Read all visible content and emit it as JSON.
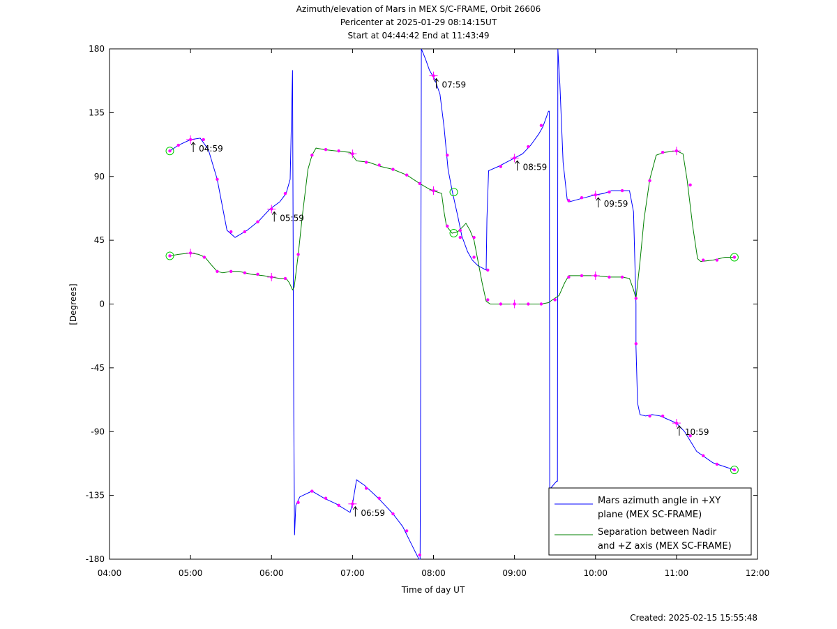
{
  "chart_data": {
    "type": "line",
    "title_lines": [
      "Azimuth/elevation of Mars in MEX S/C-FRAME,  Orbit 26606",
      "Pericenter at 2025-01-29 08:14:15UT",
      "Start at 04:44:42 End at 11:43:49"
    ],
    "xlabel": "Time of day UT",
    "ylabel": "[Degrees]",
    "xlim": [
      4.0,
      12.0
    ],
    "ylim": [
      -180,
      180
    ],
    "xticks": [
      4,
      5,
      6,
      7,
      8,
      9,
      10,
      11,
      12
    ],
    "xtick_labels": [
      "04:00",
      "05:00",
      "06:00",
      "07:00",
      "08:00",
      "09:00",
      "10:00",
      "11:00",
      "12:00"
    ],
    "yticks": [
      180,
      135,
      90,
      45,
      0,
      -45,
      -90,
      -135,
      -180
    ],
    "ytick_labels": [
      "180",
      "135",
      "90",
      "45",
      "0",
      "-45",
      "-90",
      "-135",
      "-180"
    ],
    "grid": false,
    "legend_position": "bottom-right",
    "series": [
      {
        "name_lines": [
          "Mars azimuth angle in +XY",
          "plane (MEX SC-FRAME)"
        ],
        "color": "#0000ff",
        "points": [
          [
            4.745,
            108
          ],
          [
            4.85,
            112
          ],
          [
            5.0,
            116
          ],
          [
            5.12,
            117
          ],
          [
            5.22,
            109
          ],
          [
            5.33,
            88
          ],
          [
            5.45,
            52
          ],
          [
            5.55,
            47
          ],
          [
            5.7,
            52
          ],
          [
            5.85,
            59
          ],
          [
            5.98,
            67
          ],
          [
            6.1,
            72
          ],
          [
            6.18,
            78
          ],
          [
            6.23,
            88
          ],
          [
            6.26,
            165
          ],
          [
            6.275,
            -80
          ],
          [
            6.285,
            -163
          ],
          [
            6.3,
            -142
          ],
          [
            6.35,
            -136
          ],
          [
            6.5,
            -132
          ],
          [
            6.65,
            -137
          ],
          [
            6.8,
            -141
          ],
          [
            6.97,
            -147
          ],
          [
            7.0,
            -141
          ],
          [
            7.05,
            -124
          ],
          [
            7.15,
            -128
          ],
          [
            7.32,
            -137
          ],
          [
            7.5,
            -148
          ],
          [
            7.62,
            -157
          ],
          [
            7.75,
            -172
          ],
          [
            7.82,
            -180
          ],
          [
            7.835,
            -180
          ],
          [
            7.84,
            -100
          ],
          [
            7.85,
            180
          ],
          [
            7.9,
            173
          ],
          [
            7.95,
            165
          ],
          [
            8.02,
            158
          ],
          [
            8.08,
            148
          ],
          [
            8.13,
            125
          ],
          [
            8.18,
            95
          ],
          [
            8.23,
            80
          ],
          [
            8.3,
            62
          ],
          [
            8.35,
            48
          ],
          [
            8.42,
            37
          ],
          [
            8.48,
            31
          ],
          [
            8.55,
            27
          ],
          [
            8.65,
            24
          ],
          [
            8.66,
            60
          ],
          [
            8.68,
            94
          ],
          [
            8.8,
            97
          ],
          [
            8.9,
            100
          ],
          [
            9.0,
            103
          ],
          [
            9.1,
            106
          ],
          [
            9.2,
            112
          ],
          [
            9.3,
            120
          ],
          [
            9.35,
            125
          ],
          [
            9.42,
            136
          ],
          [
            9.43,
            136
          ],
          [
            9.435,
            -130
          ],
          [
            9.445,
            -130
          ],
          [
            9.52,
            -125
          ],
          [
            9.53,
            -125
          ],
          [
            9.535,
            180
          ],
          [
            9.56,
            155
          ],
          [
            9.6,
            100
          ],
          [
            9.65,
            74
          ],
          [
            9.67,
            72
          ],
          [
            9.8,
            74
          ],
          [
            9.93,
            76
          ],
          [
            10.0,
            77
          ],
          [
            10.1,
            78
          ],
          [
            10.2,
            80
          ],
          [
            10.3,
            80
          ],
          [
            10.42,
            80
          ],
          [
            10.47,
            65
          ],
          [
            10.5,
            0
          ],
          [
            10.5,
            -30
          ],
          [
            10.52,
            -70
          ],
          [
            10.55,
            -78
          ],
          [
            10.62,
            -79
          ],
          [
            10.7,
            -78
          ],
          [
            10.8,
            -79
          ],
          [
            10.88,
            -81
          ],
          [
            11.0,
            -84
          ],
          [
            11.1,
            -90
          ],
          [
            11.25,
            -104
          ],
          [
            11.45,
            -112
          ],
          [
            11.715,
            -117
          ]
        ],
        "markers": [
          [
            4.745,
            108
          ],
          [
            4.85,
            112
          ],
          [
            5.0,
            116
          ],
          [
            5.16,
            116
          ],
          [
            5.33,
            88
          ],
          [
            5.5,
            51
          ],
          [
            5.67,
            51
          ],
          [
            5.83,
            58
          ],
          [
            6.0,
            67
          ],
          [
            6.17,
            78
          ],
          [
            6.33,
            -140
          ],
          [
            6.5,
            -132
          ],
          [
            6.67,
            -137
          ],
          [
            6.83,
            -142
          ],
          [
            7.0,
            -141
          ],
          [
            7.17,
            -130
          ],
          [
            7.33,
            -137
          ],
          [
            7.5,
            -148
          ],
          [
            7.67,
            -160
          ],
          [
            7.83,
            -177
          ],
          [
            8.0,
            161
          ],
          [
            8.17,
            105
          ],
          [
            8.33,
            47
          ],
          [
            8.5,
            33
          ],
          [
            8.67,
            24
          ],
          [
            8.83,
            97
          ],
          [
            9.0,
            103
          ],
          [
            9.17,
            111
          ],
          [
            9.33,
            126
          ],
          [
            9.67,
            73
          ],
          [
            9.83,
            75
          ],
          [
            10.0,
            77
          ],
          [
            10.17,
            79
          ],
          [
            10.33,
            80
          ],
          [
            10.5,
            -28
          ],
          [
            10.67,
            -79
          ],
          [
            10.83,
            -79
          ],
          [
            11.0,
            -84
          ],
          [
            11.17,
            -93
          ],
          [
            11.33,
            -107
          ],
          [
            11.5,
            -113
          ],
          [
            11.715,
            -117
          ]
        ],
        "time_labels": [
          {
            "t": 5.0,
            "v": 116,
            "label": "04:59"
          },
          {
            "t": 6.0,
            "v": 67,
            "label": "05:59"
          },
          {
            "t": 7.0,
            "v": -141,
            "label": "06:59"
          },
          {
            "t": 8.0,
            "v": 161,
            "label": "07:59"
          },
          {
            "t": 9.0,
            "v": 103,
            "label": "08:59"
          },
          {
            "t": 10.0,
            "v": 77,
            "label": "09:59"
          },
          {
            "t": 11.0,
            "v": -84,
            "label": "10:59"
          }
        ]
      },
      {
        "name_lines": [
          "Separation between Nadir",
          "and +Z axis (MEX SC-FRAME)"
        ],
        "color": "#008000",
        "points": [
          [
            4.745,
            34
          ],
          [
            4.85,
            35
          ],
          [
            5.0,
            36
          ],
          [
            5.1,
            35
          ],
          [
            5.18,
            33
          ],
          [
            5.25,
            28
          ],
          [
            5.33,
            23
          ],
          [
            5.4,
            22
          ],
          [
            5.5,
            23
          ],
          [
            5.6,
            23
          ],
          [
            5.75,
            21
          ],
          [
            5.9,
            20
          ],
          [
            6.0,
            19
          ],
          [
            6.1,
            18
          ],
          [
            6.18,
            18
          ],
          [
            6.22,
            15
          ],
          [
            6.26,
            10
          ],
          [
            6.28,
            12
          ],
          [
            6.33,
            35
          ],
          [
            6.38,
            62
          ],
          [
            6.45,
            95
          ],
          [
            6.5,
            105
          ],
          [
            6.55,
            110
          ],
          [
            6.65,
            109
          ],
          [
            6.8,
            108
          ],
          [
            6.97,
            107
          ],
          [
            7.05,
            101
          ],
          [
            7.2,
            100
          ],
          [
            7.35,
            97
          ],
          [
            7.5,
            95
          ],
          [
            7.67,
            91
          ],
          [
            7.83,
            85
          ],
          [
            7.95,
            81
          ],
          [
            8.0,
            80
          ],
          [
            8.1,
            78
          ],
          [
            8.13,
            65
          ],
          [
            8.16,
            55
          ],
          [
            8.23,
            50
          ],
          [
            8.3,
            51
          ],
          [
            8.37,
            55
          ],
          [
            8.4,
            57
          ],
          [
            8.45,
            52
          ],
          [
            8.5,
            45
          ],
          [
            8.55,
            30
          ],
          [
            8.6,
            15
          ],
          [
            8.65,
            2
          ],
          [
            8.7,
            0
          ],
          [
            8.83,
            0
          ],
          [
            9.0,
            0
          ],
          [
            9.17,
            0
          ],
          [
            9.33,
            0
          ],
          [
            9.42,
            1
          ],
          [
            9.47,
            3
          ],
          [
            9.55,
            6
          ],
          [
            9.62,
            15
          ],
          [
            9.67,
            20
          ],
          [
            9.75,
            20
          ],
          [
            9.83,
            20
          ],
          [
            10.0,
            20
          ],
          [
            10.17,
            19
          ],
          [
            10.33,
            19
          ],
          [
            10.42,
            18
          ],
          [
            10.47,
            10
          ],
          [
            10.5,
            4
          ],
          [
            10.55,
            30
          ],
          [
            10.6,
            60
          ],
          [
            10.67,
            88
          ],
          [
            10.75,
            105
          ],
          [
            10.85,
            107
          ],
          [
            11.0,
            108
          ],
          [
            11.08,
            106
          ],
          [
            11.13,
            88
          ],
          [
            11.2,
            55
          ],
          [
            11.26,
            32
          ],
          [
            11.3,
            30
          ],
          [
            11.45,
            31
          ],
          [
            11.6,
            33
          ],
          [
            11.715,
            33
          ]
        ],
        "markers": [
          [
            4.745,
            34
          ],
          [
            5.0,
            36
          ],
          [
            5.17,
            33
          ],
          [
            5.33,
            23
          ],
          [
            5.5,
            23
          ],
          [
            5.67,
            22
          ],
          [
            5.83,
            21
          ],
          [
            6.0,
            19
          ],
          [
            6.17,
            18
          ],
          [
            6.33,
            35
          ],
          [
            6.5,
            105
          ],
          [
            6.67,
            109
          ],
          [
            6.83,
            108
          ],
          [
            7.0,
            106
          ],
          [
            7.17,
            100
          ],
          [
            7.33,
            98
          ],
          [
            7.5,
            95
          ],
          [
            7.67,
            91
          ],
          [
            7.83,
            85
          ],
          [
            8.0,
            80
          ],
          [
            8.17,
            55
          ],
          [
            8.33,
            52
          ],
          [
            8.5,
            47
          ],
          [
            8.67,
            3
          ],
          [
            8.83,
            0
          ],
          [
            9.0,
            0
          ],
          [
            9.17,
            0
          ],
          [
            9.33,
            0
          ],
          [
            9.5,
            3
          ],
          [
            9.67,
            19
          ],
          [
            9.83,
            20
          ],
          [
            10.0,
            20
          ],
          [
            10.17,
            19
          ],
          [
            10.33,
            19
          ],
          [
            10.5,
            4
          ],
          [
            10.67,
            87
          ],
          [
            10.83,
            107
          ],
          [
            11.0,
            108
          ],
          [
            11.17,
            84
          ],
          [
            11.33,
            31
          ],
          [
            11.5,
            31
          ],
          [
            11.715,
            33
          ]
        ],
        "circles": [
          [
            4.745,
            34
          ],
          [
            8.25,
            50
          ],
          [
            11.715,
            33
          ]
        ]
      }
    ],
    "extra_circles": [
      [
        4.745,
        108
      ],
      [
        8.25,
        79
      ],
      [
        11.715,
        -117
      ]
    ]
  },
  "footer": {
    "created": "Created: 2025-02-15 15:55:48"
  }
}
